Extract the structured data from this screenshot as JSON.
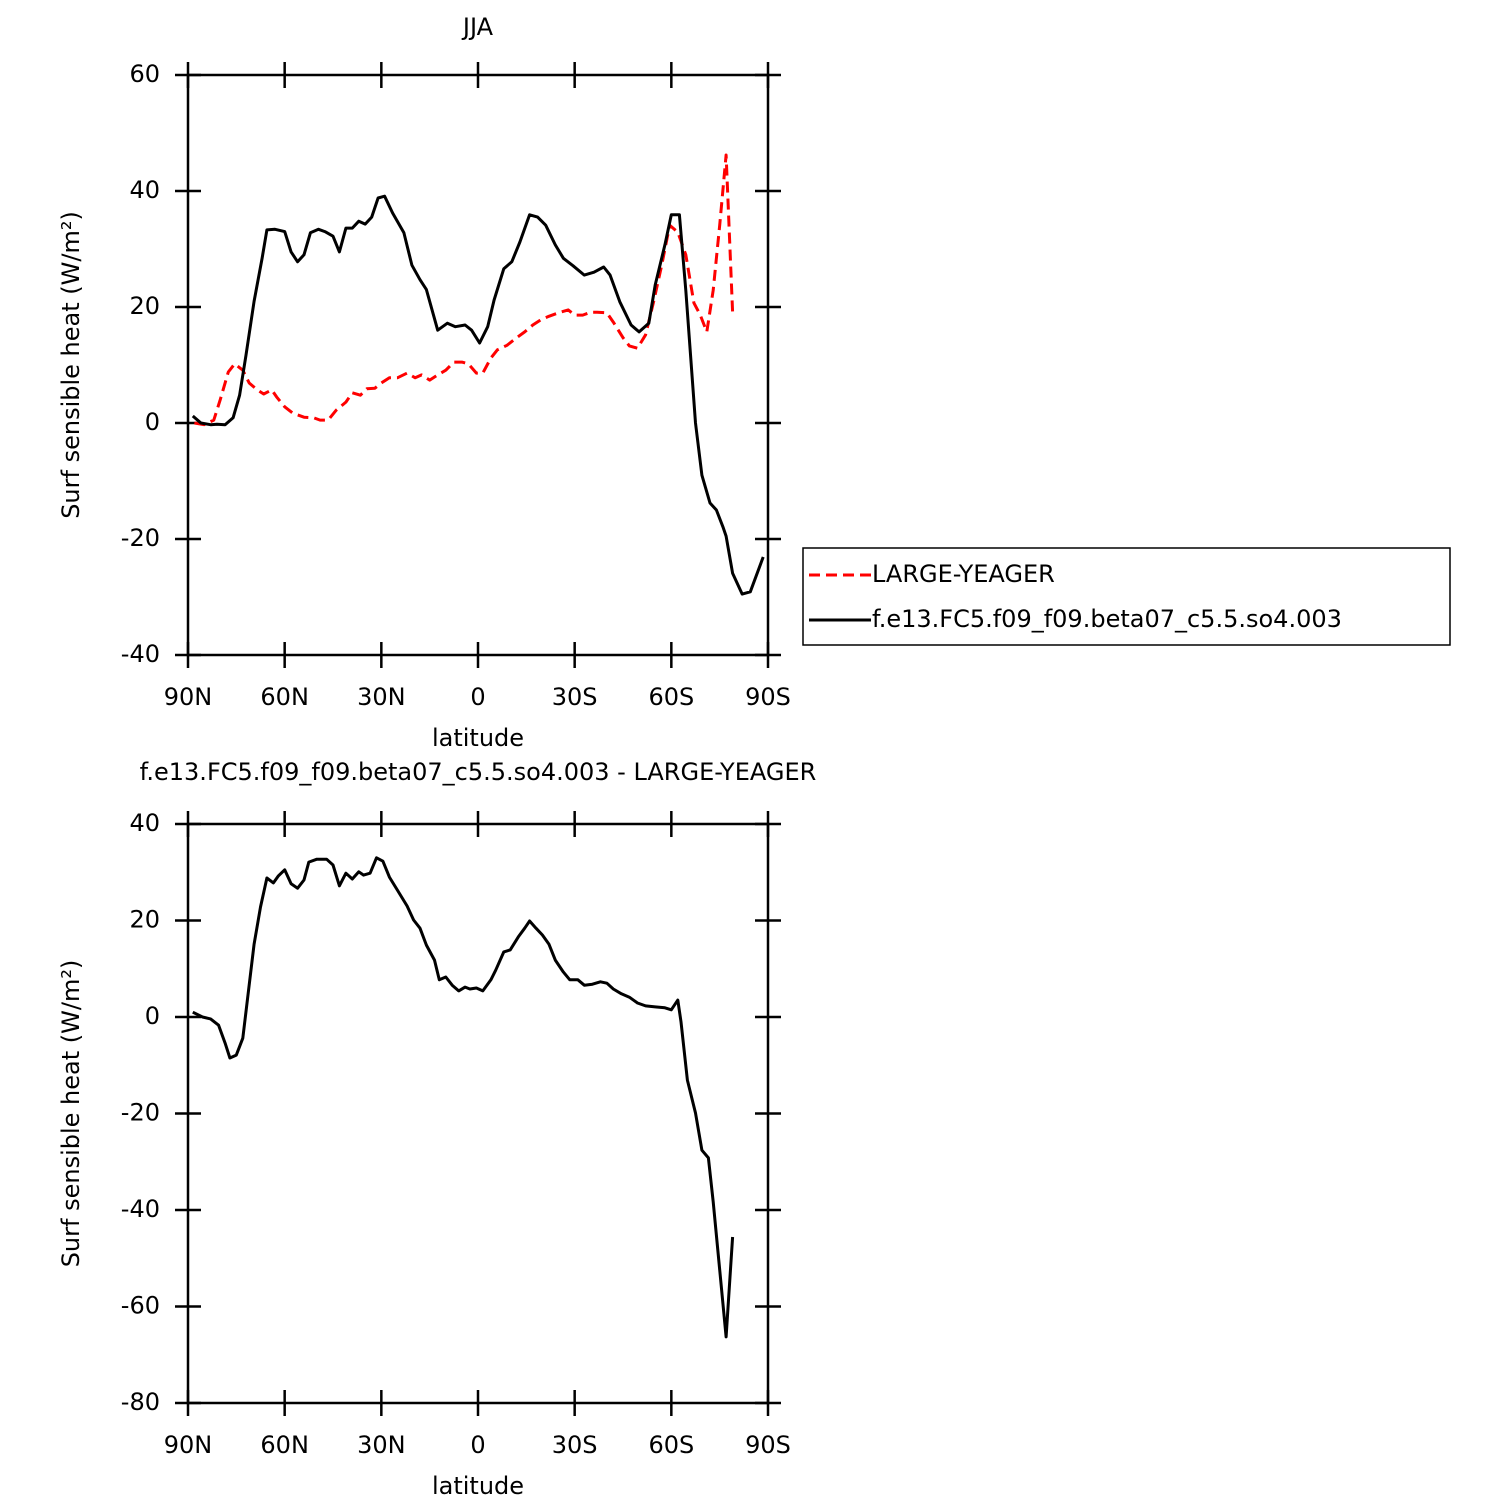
{
  "chart_data": [
    {
      "type": "line",
      "title": "JJA",
      "xlabel": "latitude",
      "ylabel": "Surf sensible heat (W/m²)",
      "xlim": [
        90,
        -90
      ],
      "xticks": [
        {
          "value": 90,
          "label": "90N"
        },
        {
          "value": 60,
          "label": "60N"
        },
        {
          "value": 30,
          "label": "30N"
        },
        0,
        {
          "value": -30,
          "label": "30S"
        },
        {
          "value": -60,
          "label": "60S"
        },
        {
          "value": -90,
          "label": "90S"
        }
      ],
      "ylim": [
        -40,
        60
      ],
      "yticks": [
        -40,
        -20,
        0,
        20,
        40,
        60
      ],
      "legend": "right",
      "series": [
        {
          "name": "LARGE-YEAGER",
          "color": "#ff0000",
          "dash": "dashed",
          "x": [
            88,
            85,
            82,
            80,
            77.5,
            75.5,
            73,
            71,
            68.5,
            66.5,
            64,
            62.5,
            60,
            57.5,
            54,
            51,
            49,
            46.5,
            44,
            41,
            39,
            36.5,
            34.5,
            32,
            30,
            27.5,
            25,
            22,
            19.5,
            17.5,
            15,
            12.5,
            10,
            7.5,
            5,
            3,
            0.5,
            -1.5,
            -4,
            -6,
            -9,
            -12,
            -14.5,
            -17,
            -19.5,
            -22,
            -25.5,
            -28,
            -30,
            -32.5,
            -35,
            -37,
            -40,
            -42,
            -45,
            -47,
            -49.5,
            -52,
            -54.5,
            -57,
            -59.5,
            -62,
            -64.5,
            -67,
            -69,
            -71,
            -73,
            -75,
            -77,
            -79
          ],
          "values": [
            0,
            -0.3,
            0.5,
            4,
            8.8,
            10.2,
            9.1,
            6.9,
            5.7,
            5,
            5.7,
            4.5,
            2.8,
            1.7,
            1,
            0.9,
            0.5,
            0.5,
            2.2,
            3.6,
            5.2,
            4.8,
            5.9,
            6,
            6.9,
            7.8,
            7.8,
            8.6,
            7.8,
            8.3,
            7.4,
            8.3,
            9.1,
            10.5,
            10.5,
            10.2,
            8.6,
            8.6,
            11.2,
            12.6,
            13.4,
            14.7,
            15.7,
            16.9,
            17.8,
            18.4,
            19.1,
            19.5,
            18.6,
            18.6,
            19.1,
            19.1,
            19,
            17.4,
            14.7,
            13.3,
            12.9,
            15.2,
            20.9,
            27.2,
            34.1,
            32.9,
            29,
            20.7,
            18.6,
            15.7,
            22.9,
            34.1,
            46.2,
            19.1
          ]
        },
        {
          "name": "f.e13.FC5.f09_f09.beta07_c5.5.so4.003",
          "color": "#000000",
          "dash": "solid",
          "x": [
            88.5,
            86,
            83,
            81,
            78.5,
            76,
            74,
            72,
            69.5,
            67,
            65.5,
            63,
            60,
            58,
            56,
            54,
            52,
            49.5,
            47.5,
            45,
            43,
            41,
            39,
            37,
            35,
            33,
            31,
            29,
            26.5,
            23,
            20.5,
            18,
            16,
            12.5,
            9.5,
            7,
            4,
            2,
            -0.5,
            -3,
            -5,
            -8,
            -10.5,
            -13,
            -16,
            -18.5,
            -21,
            -24,
            -26.5,
            -29.5,
            -33,
            -36,
            -39,
            -41,
            -44,
            -47.5,
            -50,
            -53,
            -55,
            -58,
            -60,
            -62.5,
            -64.5,
            -67.5,
            -69.5,
            -72,
            -74,
            -76,
            -77,
            -79,
            -82,
            -84.5,
            -88.5
          ],
          "values": [
            1.2,
            0,
            -0.3,
            -0.2,
            -0.3,
            0.9,
            4.8,
            11.7,
            21,
            28.4,
            33.3,
            33.4,
            33,
            29.5,
            27.8,
            29,
            32.8,
            33.4,
            33,
            32.2,
            29.5,
            33.6,
            33.6,
            34.8,
            34.3,
            35.5,
            38.8,
            39.1,
            36.2,
            32.8,
            27.2,
            24.7,
            23,
            16,
            17.2,
            16.6,
            16.9,
            16,
            13.8,
            16.6,
            21.2,
            26.6,
            27.8,
            31.2,
            35.9,
            35.5,
            34.1,
            30.7,
            28.4,
            27.1,
            25.5,
            26,
            26.9,
            25.5,
            20.9,
            16.9,
            15.7,
            17.2,
            23.8,
            30.7,
            35.9,
            35.9,
            22.9,
            0,
            -9,
            -13.8,
            -15,
            -17.9,
            -19.5,
            -25.9,
            -29.5,
            -29.1,
            -23.1
          ]
        }
      ]
    },
    {
      "type": "line",
      "title": "f.e13.FC5.f09_f09.beta07_c5.5.so4.003 - LARGE-YEAGER",
      "xlabel": "latitude",
      "ylabel": "Surf sensible heat (W/m²)",
      "xlim": [
        90,
        -90
      ],
      "xticks": [
        {
          "value": 90,
          "label": "90N"
        },
        {
          "value": 60,
          "label": "60N"
        },
        {
          "value": 30,
          "label": "30N"
        },
        0,
        {
          "value": -30,
          "label": "30S"
        },
        {
          "value": -60,
          "label": "60S"
        },
        {
          "value": -90,
          "label": "90S"
        }
      ],
      "ylim": [
        -80,
        40
      ],
      "yticks": [
        -80,
        -60,
        -40,
        -20,
        0,
        20,
        40
      ],
      "series": [
        {
          "color": "#000000",
          "dash": "solid",
          "x": [
            88.5,
            85.5,
            83,
            80.5,
            78.5,
            77,
            75,
            73,
            71.5,
            69.5,
            67.5,
            65.5,
            63.5,
            62,
            60,
            58,
            56,
            54,
            52.5,
            50,
            47,
            45,
            43,
            41,
            39,
            37,
            35.5,
            33.5,
            31.5,
            29.5,
            27.5,
            25,
            22,
            20,
            18,
            16,
            13.5,
            12,
            10,
            8,
            6,
            4,
            2.5,
            0.5,
            -1.5,
            -4,
            -5.5,
            -8,
            -10,
            -12.5,
            -14.5,
            -16,
            -18,
            -20,
            -22,
            -24,
            -26.5,
            -28.5,
            -31,
            -33,
            -35.5,
            -38,
            -40,
            -42,
            -44.5,
            -47,
            -49.5,
            -52,
            -55,
            -58,
            -60,
            -62,
            -63,
            -65,
            -67.5,
            -69.5,
            -71.5,
            -73,
            -75,
            -77,
            -79
          ],
          "values": [
            1,
            0,
            -0.4,
            -1.7,
            -5.4,
            -8.5,
            -7.9,
            -4.4,
            3.9,
            15.1,
            22.8,
            28.8,
            27.8,
            29.2,
            30.5,
            27.6,
            26.7,
            28.4,
            32.1,
            32.7,
            32.7,
            31.5,
            27.2,
            29.8,
            28.6,
            30.1,
            29.4,
            29.8,
            33,
            32.3,
            29,
            26.3,
            23,
            20.1,
            18.4,
            14.9,
            11.8,
            7.7,
            8.3,
            6.6,
            5.4,
            6.2,
            5.8,
            6,
            5.4,
            7.7,
            9.7,
            13.5,
            13.9,
            16.6,
            18.4,
            19.9,
            18.4,
            17,
            15.1,
            11.8,
            9.3,
            7.7,
            7.7,
            6.6,
            6.8,
            7.3,
            7,
            5.8,
            4.8,
            4.1,
            2.9,
            2.3,
            2.1,
            1.9,
            1.5,
            3.5,
            -1,
            -13.1,
            -19.9,
            -27.6,
            -29.2,
            -38.3,
            -52.4,
            -66.3,
            -45.6
          ]
        }
      ]
    }
  ]
}
